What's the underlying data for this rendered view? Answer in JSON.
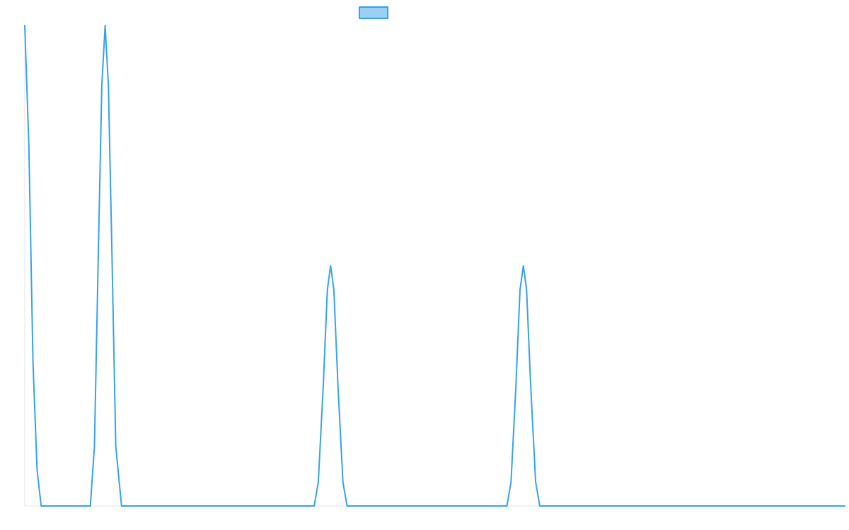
{
  "chart_data": {
    "type": "line",
    "title": "",
    "xlabel": "",
    "ylabel": "",
    "legend": {
      "placement": "top-center",
      "show_label": false
    },
    "grid": false,
    "xlim": [
      0,
      100
    ],
    "ylim": [
      0,
      2
    ],
    "series": [
      {
        "color": "#36a2eb",
        "fill_color": "#9ad0f5",
        "points": [
          [
            0,
            2
          ],
          [
            0.5,
            1.5
          ],
          [
            1,
            0.6
          ],
          [
            1.5,
            0.15
          ],
          [
            2,
            0
          ],
          [
            8,
            0
          ],
          [
            8.5,
            0.25
          ],
          [
            9,
            1.1
          ],
          [
            9.4,
            1.75
          ],
          [
            9.8,
            2
          ],
          [
            10.2,
            1.75
          ],
          [
            10.6,
            1.1
          ],
          [
            11.1,
            0.25
          ],
          [
            11.8,
            0
          ],
          [
            35.3,
            0
          ],
          [
            35.8,
            0.1
          ],
          [
            36.4,
            0.5
          ],
          [
            36.9,
            0.9
          ],
          [
            37.3,
            1
          ],
          [
            37.7,
            0.9
          ],
          [
            38.2,
            0.5
          ],
          [
            38.8,
            0.1
          ],
          [
            39.3,
            0
          ],
          [
            58.8,
            0
          ],
          [
            59.3,
            0.1
          ],
          [
            59.9,
            0.5
          ],
          [
            60.4,
            0.9
          ],
          [
            60.8,
            1
          ],
          [
            61.2,
            0.9
          ],
          [
            61.7,
            0.5
          ],
          [
            62.3,
            0.1
          ],
          [
            62.8,
            0
          ],
          [
            100,
            0
          ]
        ]
      }
    ]
  }
}
